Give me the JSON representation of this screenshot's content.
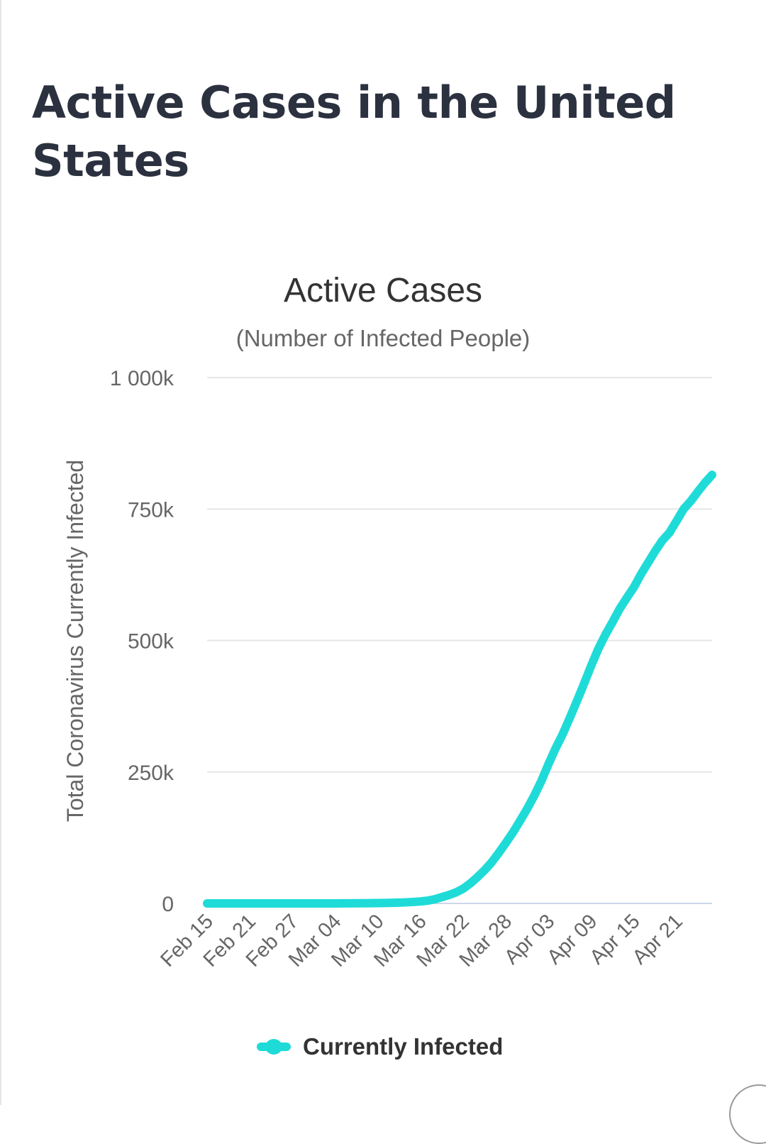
{
  "page": {
    "heading": "Active Cases in the United States"
  },
  "chart_data": {
    "type": "line",
    "title": "Active Cases",
    "subtitle": "(Number of Infected People)",
    "ylabel": "Total Coronavirus Currently Infected",
    "xlabel": "",
    "ylim": [
      0,
      1000000
    ],
    "y_ticks": [
      {
        "value": 0,
        "label": "0"
      },
      {
        "value": 250000,
        "label": "250k"
      },
      {
        "value": 500000,
        "label": "500k"
      },
      {
        "value": 750000,
        "label": "750k"
      },
      {
        "value": 1000000,
        "label": "1 000k"
      }
    ],
    "x_tick_labels": [
      "Feb 15",
      "Feb 21",
      "Feb 27",
      "Mar 04",
      "Mar 10",
      "Mar 16",
      "Mar 22",
      "Mar 28",
      "Apr 03",
      "Apr 09",
      "Apr 15",
      "Apr 21"
    ],
    "x_tick_every": 6,
    "grid": true,
    "legend_position": "bottom",
    "series": [
      {
        "name": "Currently Infected",
        "color": "#1fdbd8",
        "x": [
          "Feb 15",
          "Feb 16",
          "Feb 17",
          "Feb 18",
          "Feb 19",
          "Feb 20",
          "Feb 21",
          "Feb 22",
          "Feb 23",
          "Feb 24",
          "Feb 25",
          "Feb 26",
          "Feb 27",
          "Feb 28",
          "Feb 29",
          "Mar 01",
          "Mar 02",
          "Mar 03",
          "Mar 04",
          "Mar 05",
          "Mar 06",
          "Mar 07",
          "Mar 08",
          "Mar 09",
          "Mar 10",
          "Mar 11",
          "Mar 12",
          "Mar 13",
          "Mar 14",
          "Mar 15",
          "Mar 16",
          "Mar 17",
          "Mar 18",
          "Mar 19",
          "Mar 20",
          "Mar 21",
          "Mar 22",
          "Mar 23",
          "Mar 24",
          "Mar 25",
          "Mar 26",
          "Mar 27",
          "Mar 28",
          "Mar 29",
          "Mar 30",
          "Mar 31",
          "Apr 01",
          "Apr 02",
          "Apr 03",
          "Apr 04",
          "Apr 05",
          "Apr 06",
          "Apr 07",
          "Apr 08",
          "Apr 09",
          "Apr 10",
          "Apr 11",
          "Apr 12",
          "Apr 13",
          "Apr 14",
          "Apr 15",
          "Apr 16",
          "Apr 17",
          "Apr 18",
          "Apr 19",
          "Apr 20",
          "Apr 21",
          "Apr 22",
          "Apr 23",
          "Apr 24",
          "Apr 25",
          "Apr 26"
        ],
        "values": [
          8,
          8,
          8,
          8,
          8,
          8,
          8,
          8,
          9,
          9,
          10,
          11,
          12,
          13,
          16,
          20,
          30,
          50,
          80,
          110,
          180,
          250,
          350,
          450,
          600,
          800,
          1100,
          1500,
          2100,
          2800,
          3800,
          5200,
          8000,
          12000,
          16000,
          21000,
          28000,
          38000,
          50000,
          63000,
          78000,
          96000,
          115000,
          135000,
          157000,
          180000,
          205000,
          233000,
          265000,
          295000,
          322000,
          353000,
          385000,
          418000,
          452000,
          484000,
          511000,
          535000,
          560000,
          581000,
          601000,
          626000,
          648000,
          670000,
          690000,
          705000,
          727000,
          750000,
          765000,
          783000,
          800000,
          815000
        ]
      }
    ]
  }
}
